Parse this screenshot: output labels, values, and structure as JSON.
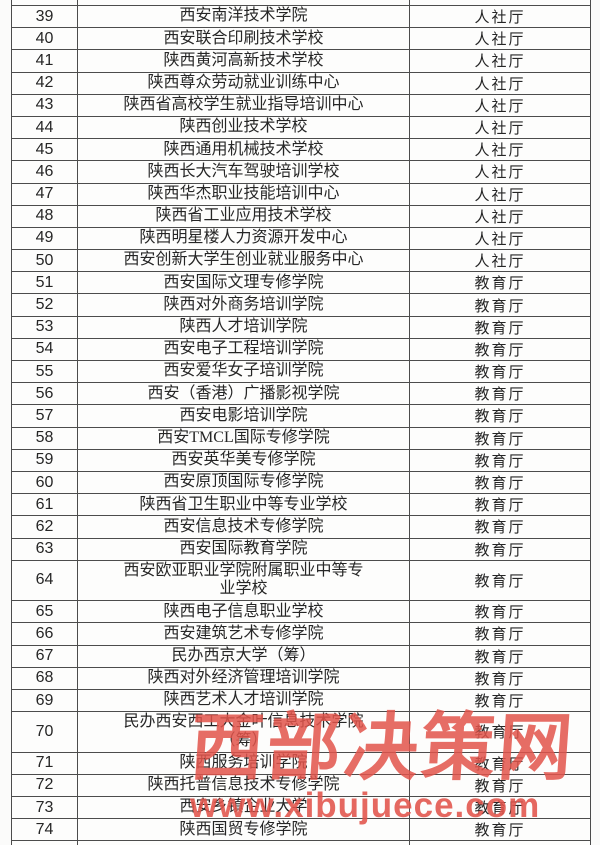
{
  "page": {
    "background": "#fbfbfa",
    "border_color": "#4c4c4c",
    "text_color": "#262626"
  },
  "watermark": {
    "site_name": "西部决策网",
    "site_url": "www.xibujuece.com",
    "color": "#e2544b"
  },
  "table": {
    "rows": [
      {
        "no": "39",
        "name": "西安南洋技术学院",
        "dept": "人社厅"
      },
      {
        "no": "40",
        "name": "西安联合印刷技术学校",
        "dept": "人社厅"
      },
      {
        "no": "41",
        "name": "陕西黄河高新技术学校",
        "dept": "人社厅"
      },
      {
        "no": "42",
        "name": "陕西尊众劳动就业训练中心",
        "dept": "人社厅"
      },
      {
        "no": "43",
        "name": "陕西省高校学生就业指导培训中心",
        "dept": "人社厅"
      },
      {
        "no": "44",
        "name": "陕西创业技术学校",
        "dept": "人社厅"
      },
      {
        "no": "45",
        "name": "陕西通用机械技术学校",
        "dept": "人社厅"
      },
      {
        "no": "46",
        "name": "陕西长大汽车驾驶培训学校",
        "dept": "人社厅"
      },
      {
        "no": "47",
        "name": "陕西华杰职业技能培训中心",
        "dept": "人社厅"
      },
      {
        "no": "48",
        "name": "陕西省工业应用技术学校",
        "dept": "人社厅"
      },
      {
        "no": "49",
        "name": "陕西明星楼人力资源开发中心",
        "dept": "人社厅"
      },
      {
        "no": "50",
        "name": "西安创新大学生创业就业服务中心",
        "dept": "人社厅"
      },
      {
        "no": "51",
        "name": "西安国际文理专修学院",
        "dept": "教育厅"
      },
      {
        "no": "52",
        "name": "陕西对外商务培训学院",
        "dept": "教育厅"
      },
      {
        "no": "53",
        "name": "陕西人才培训学院",
        "dept": "教育厅"
      },
      {
        "no": "54",
        "name": "西安电子工程培训学院",
        "dept": "教育厅"
      },
      {
        "no": "55",
        "name": "西安爱华女子培训学院",
        "dept": "教育厅"
      },
      {
        "no": "56",
        "name": "西安（香港）广播影视学院",
        "dept": "教育厅"
      },
      {
        "no": "57",
        "name": "西安电影培训学院",
        "dept": "教育厅"
      },
      {
        "no": "58",
        "name": "西安TMCL国际专修学院",
        "dept": "教育厅"
      },
      {
        "no": "59",
        "name": "西安英华美专修学院",
        "dept": "教育厅"
      },
      {
        "no": "60",
        "name": "西安原顶国际专修学院",
        "dept": "教育厅"
      },
      {
        "no": "61",
        "name": "陕西省卫生职业中等专业学校",
        "dept": "教育厅"
      },
      {
        "no": "62",
        "name": "西安信息技术专修学院",
        "dept": "教育厅"
      },
      {
        "no": "63",
        "name": "西安国际教育学院",
        "dept": "教育厅"
      },
      {
        "no": "64",
        "name": "西安欧亚职业学院附属职业中等专业学校",
        "dept": "教育厅"
      },
      {
        "no": "65",
        "name": "陕西电子信息职业学校",
        "dept": "教育厅"
      },
      {
        "no": "66",
        "name": "西安建筑艺术专修学院",
        "dept": "教育厅"
      },
      {
        "no": "67",
        "name": "民办西京大学（筹）",
        "dept": "教育厅"
      },
      {
        "no": "68",
        "name": "陕西对外经济管理培训学院",
        "dept": "教育厅"
      },
      {
        "no": "69",
        "name": "陕西艺术人才培训学院",
        "dept": "教育厅"
      },
      {
        "no": "70",
        "name": "民办西安西工大金叶信息技术学院（筹）",
        "dept": "教育厅"
      },
      {
        "no": "71",
        "name": "陕西服务培训学院",
        "dept": "教育厅"
      },
      {
        "no": "72",
        "name": "陕西托普信息技术专修学院",
        "dept": "教育厅"
      },
      {
        "no": "73",
        "name": "西安乡镇企业大学",
        "dept": "教育厅"
      },
      {
        "no": "74",
        "name": "陕西国贸专修学院",
        "dept": "教育厅"
      }
    ]
  }
}
